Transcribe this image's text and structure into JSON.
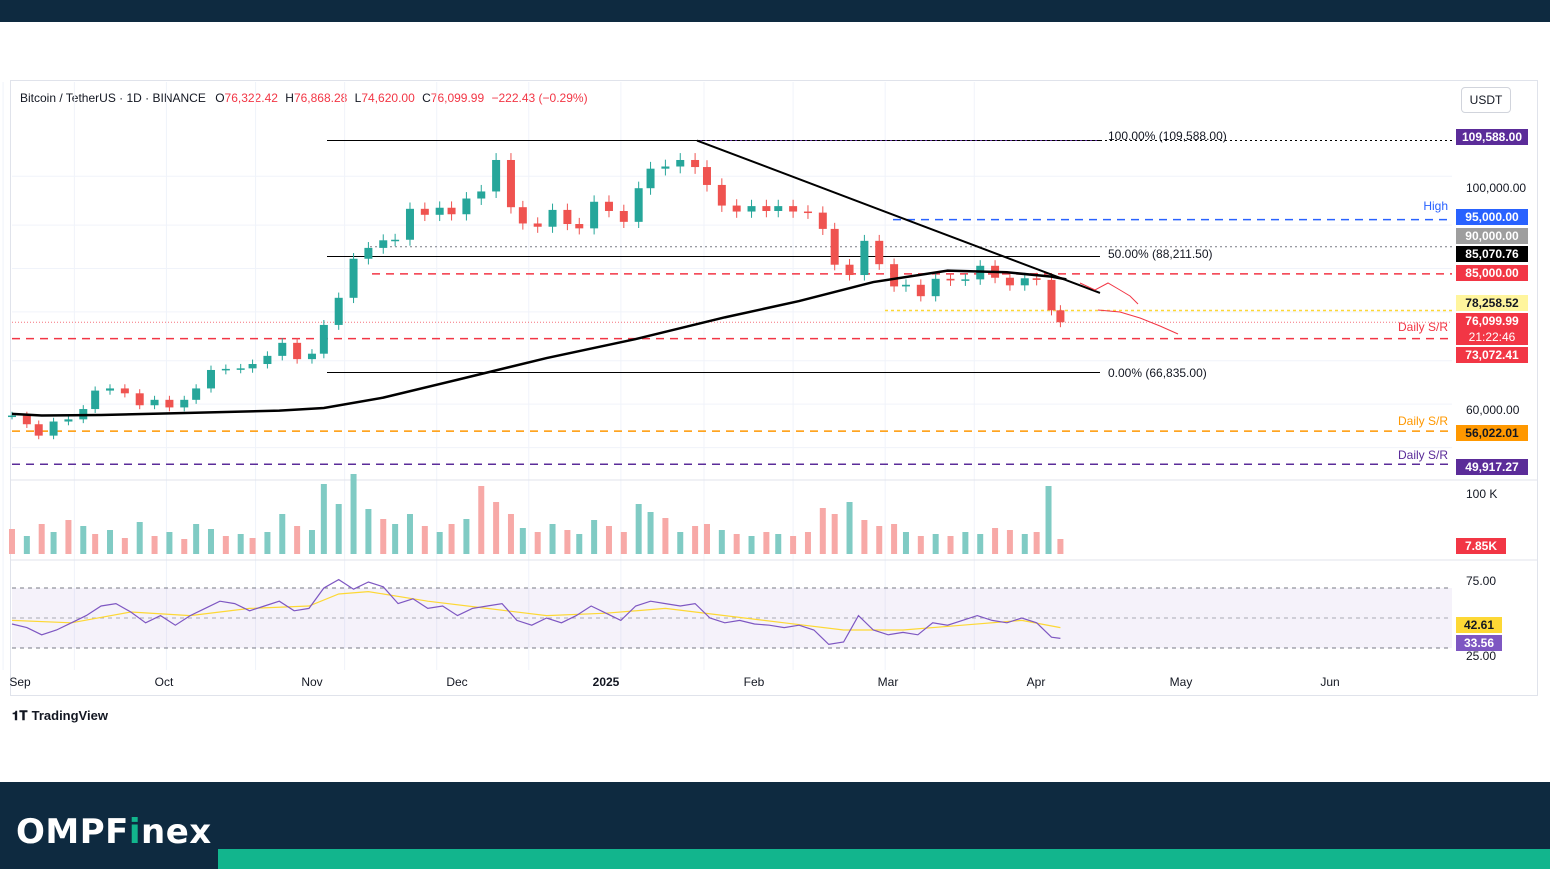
{
  "header": {
    "symbol": "Bitcoin / TetherUS · 1D · BINANCE",
    "open_label": "O",
    "open": "76,322.42",
    "high_label": "H",
    "high": "76,868.28",
    "low_label": "L",
    "low": "74,620.00",
    "close_label": "C",
    "close": "76,099.99",
    "change": "−222.43 (−0.29%)",
    "currency": "USDT"
  },
  "brand": {
    "name_prefix": "OMPF",
    "name_i": "i",
    "name_suffix": "nex",
    "platform": "TradingView"
  },
  "colors": {
    "up": "#26a69a",
    "down": "#ef5350",
    "sma": "#000000",
    "rsi": "#7e57c2",
    "rsi_ma": "#fdd835",
    "red_sr": "#f23645",
    "orange_sr": "#ff9800",
    "purple_sr": "#5b2c99",
    "blue_high": "#2962ff"
  },
  "chart_data": {
    "type": "candlestick",
    "price_axis": {
      "ticks": [
        "100,000.00",
        "60,000.00"
      ],
      "ylim": [
        45000,
        114000
      ]
    },
    "x_axis": {
      "ticks": [
        "Sep",
        "Oct",
        "Nov",
        "Dec",
        "2025",
        "Feb",
        "Mar",
        "Apr",
        "May",
        "Jun"
      ]
    },
    "series_close": [
      [
        0,
        58900
      ],
      [
        5,
        57300
      ],
      [
        9,
        55200
      ],
      [
        14,
        57800
      ],
      [
        19,
        58200
      ],
      [
        24,
        60100
      ],
      [
        28,
        63500
      ],
      [
        33,
        63900
      ],
      [
        38,
        63000
      ],
      [
        43,
        60800
      ],
      [
        48,
        61800
      ],
      [
        53,
        60400
      ],
      [
        58,
        61800
      ],
      [
        62,
        63900
      ],
      [
        67,
        67300
      ],
      [
        72,
        67500
      ],
      [
        77,
        67600
      ],
      [
        81,
        68400
      ],
      [
        86,
        69900
      ],
      [
        91,
        72300
      ],
      [
        96,
        69300
      ],
      [
        101,
        70300
      ],
      [
        105,
        75600
      ],
      [
        110,
        80600
      ],
      [
        115,
        87800
      ],
      [
        120,
        89800
      ],
      [
        125,
        91200
      ],
      [
        129,
        91300
      ],
      [
        134,
        97000
      ],
      [
        139,
        95900
      ],
      [
        144,
        97200
      ],
      [
        148,
        96000
      ],
      [
        153,
        98900
      ],
      [
        158,
        100200
      ],
      [
        163,
        106000
      ],
      [
        168,
        97300
      ],
      [
        172,
        94300
      ],
      [
        177,
        93700
      ],
      [
        182,
        96800
      ],
      [
        187,
        94200
      ],
      [
        191,
        93400
      ],
      [
        196,
        98300
      ],
      [
        201,
        96600
      ],
      [
        206,
        94600
      ],
      [
        211,
        100800
      ],
      [
        215,
        104400
      ],
      [
        220,
        104800
      ],
      [
        225,
        106000
      ],
      [
        230,
        104700
      ],
      [
        234,
        101400
      ],
      [
        239,
        97600
      ],
      [
        244,
        96500
      ],
      [
        249,
        97500
      ],
      [
        254,
        96600
      ],
      [
        258,
        97500
      ],
      [
        263,
        96500
      ],
      [
        268,
        96300
      ],
      [
        273,
        93300
      ],
      [
        277,
        86700
      ],
      [
        282,
        84800
      ],
      [
        287,
        91100
      ],
      [
        292,
        86800
      ],
      [
        297,
        82700
      ],
      [
        301,
        83000
      ],
      [
        306,
        80900
      ],
      [
        311,
        84100
      ],
      [
        316,
        83800
      ],
      [
        321,
        84000
      ],
      [
        326,
        86500
      ],
      [
        331,
        84300
      ],
      [
        336,
        82900
      ],
      [
        341,
        84200
      ],
      [
        345,
        83900
      ],
      [
        350,
        78300
      ],
      [
        353,
        76100
      ]
    ],
    "sma_200": [
      [
        0,
        59200
      ],
      [
        10,
        58900
      ],
      [
        30,
        59000
      ],
      [
        60,
        59400
      ],
      [
        90,
        59800
      ],
      [
        105,
        60300
      ],
      [
        125,
        62200
      ],
      [
        150,
        65500
      ],
      [
        180,
        69500
      ],
      [
        210,
        73000
      ],
      [
        240,
        77000
      ],
      [
        265,
        80000
      ],
      [
        290,
        83500
      ],
      [
        315,
        85600
      ],
      [
        335,
        85300
      ],
      [
        350,
        84500
      ],
      [
        355,
        84000
      ]
    ],
    "annotations": {
      "fib_100": "100.00% (109,588.00)",
      "fib_50": "50.00% (88,211.50)",
      "fib_0": "0.00% (66,835.00)",
      "high_label": "High",
      "daily_sr": "Daily S/R"
    },
    "price_labels": [
      "109,588.00",
      "95,000.00",
      "90,000.00",
      "85,070.76",
      "85,000.00",
      "78,258.52",
      "76,099.99",
      "21:22:46",
      "73,072.41",
      "56,022.01",
      "49,917.27"
    ],
    "volume": {
      "label": "100 K",
      "last": "7.85K",
      "values": [
        [
          0,
          25,
          "d"
        ],
        [
          5,
          18,
          "u"
        ],
        [
          10,
          30,
          "d"
        ],
        [
          14,
          22,
          "u"
        ],
        [
          19,
          34,
          "d"
        ],
        [
          24,
          28,
          "u"
        ],
        [
          28,
          20,
          "d"
        ],
        [
          33,
          24,
          "u"
        ],
        [
          38,
          16,
          "d"
        ],
        [
          43,
          32,
          "u"
        ],
        [
          48,
          18,
          "d"
        ],
        [
          53,
          22,
          "u"
        ],
        [
          58,
          15,
          "d"
        ],
        [
          62,
          30,
          "u"
        ],
        [
          67,
          25,
          "u"
        ],
        [
          72,
          18,
          "d"
        ],
        [
          77,
          20,
          "u"
        ],
        [
          81,
          16,
          "d"
        ],
        [
          86,
          22,
          "u"
        ],
        [
          91,
          40,
          "u"
        ],
        [
          96,
          28,
          "d"
        ],
        [
          101,
          24,
          "u"
        ],
        [
          105,
          70,
          "u"
        ],
        [
          110,
          50,
          "u"
        ],
        [
          115,
          80,
          "u"
        ],
        [
          120,
          45,
          "u"
        ],
        [
          125,
          35,
          "d"
        ],
        [
          129,
          30,
          "u"
        ],
        [
          134,
          40,
          "u"
        ],
        [
          139,
          28,
          "d"
        ],
        [
          144,
          22,
          "u"
        ],
        [
          148,
          30,
          "d"
        ],
        [
          153,
          35,
          "u"
        ],
        [
          158,
          68,
          "d"
        ],
        [
          163,
          52,
          "d"
        ],
        [
          168,
          40,
          "d"
        ],
        [
          172,
          26,
          "u"
        ],
        [
          177,
          22,
          "d"
        ],
        [
          182,
          30,
          "u"
        ],
        [
          187,
          24,
          "d"
        ],
        [
          191,
          20,
          "u"
        ],
        [
          196,
          34,
          "u"
        ],
        [
          201,
          28,
          "d"
        ],
        [
          206,
          22,
          "d"
        ],
        [
          211,
          50,
          "u"
        ],
        [
          215,
          42,
          "u"
        ],
        [
          220,
          36,
          "d"
        ],
        [
          225,
          22,
          "u"
        ],
        [
          230,
          28,
          "d"
        ],
        [
          234,
          30,
          "d"
        ],
        [
          239,
          24,
          "u"
        ],
        [
          244,
          20,
          "d"
        ],
        [
          249,
          18,
          "u"
        ],
        [
          254,
          22,
          "d"
        ],
        [
          258,
          20,
          "u"
        ],
        [
          263,
          18,
          "d"
        ],
        [
          268,
          22,
          "d"
        ],
        [
          273,
          46,
          "d"
        ],
        [
          277,
          40,
          "d"
        ],
        [
          282,
          52,
          "u"
        ],
        [
          287,
          34,
          "d"
        ],
        [
          292,
          28,
          "d"
        ],
        [
          297,
          30,
          "d"
        ],
        [
          301,
          22,
          "u"
        ],
        [
          306,
          18,
          "d"
        ],
        [
          311,
          20,
          "u"
        ],
        [
          316,
          18,
          "d"
        ],
        [
          321,
          22,
          "u"
        ],
        [
          326,
          20,
          "u"
        ],
        [
          331,
          26,
          "d"
        ],
        [
          336,
          24,
          "d"
        ],
        [
          341,
          20,
          "u"
        ],
        [
          345,
          22,
          "d"
        ],
        [
          349,
          68,
          "u"
        ],
        [
          353,
          15,
          "d"
        ]
      ]
    },
    "rsi": {
      "levels": [
        "75.00",
        "25.00"
      ],
      "value": "33.56",
      "ma_value": "42.61",
      "line": [
        [
          0,
          45
        ],
        [
          5,
          42
        ],
        [
          10,
          36
        ],
        [
          15,
          40
        ],
        [
          20,
          46
        ],
        [
          25,
          52
        ],
        [
          30,
          60
        ],
        [
          35,
          62
        ],
        [
          40,
          55
        ],
        [
          45,
          46
        ],
        [
          50,
          52
        ],
        [
          55,
          44
        ],
        [
          60,
          52
        ],
        [
          65,
          58
        ],
        [
          70,
          64
        ],
        [
          75,
          62
        ],
        [
          80,
          56
        ],
        [
          85,
          60
        ],
        [
          90,
          64
        ],
        [
          95,
          56
        ],
        [
          100,
          58
        ],
        [
          105,
          75
        ],
        [
          110,
          82
        ],
        [
          115,
          74
        ],
        [
          120,
          80
        ],
        [
          125,
          76
        ],
        [
          130,
          62
        ],
        [
          135,
          66
        ],
        [
          140,
          58
        ],
        [
          145,
          60
        ],
        [
          150,
          52
        ],
        [
          155,
          58
        ],
        [
          160,
          60
        ],
        [
          165,
          62
        ],
        [
          170,
          48
        ],
        [
          175,
          44
        ],
        [
          180,
          50
        ],
        [
          185,
          46
        ],
        [
          190,
          52
        ],
        [
          195,
          60
        ],
        [
          200,
          54
        ],
        [
          205,
          48
        ],
        [
          210,
          60
        ],
        [
          215,
          64
        ],
        [
          220,
          62
        ],
        [
          225,
          60
        ],
        [
          230,
          62
        ],
        [
          235,
          50
        ],
        [
          240,
          46
        ],
        [
          245,
          48
        ],
        [
          250,
          45
        ],
        [
          255,
          44
        ],
        [
          260,
          42
        ],
        [
          265,
          44
        ],
        [
          270,
          40
        ],
        [
          275,
          28
        ],
        [
          280,
          30
        ],
        [
          285,
          52
        ],
        [
          290,
          40
        ],
        [
          295,
          36
        ],
        [
          300,
          38
        ],
        [
          305,
          36
        ],
        [
          310,
          46
        ],
        [
          315,
          44
        ],
        [
          320,
          48
        ],
        [
          325,
          52
        ],
        [
          330,
          48
        ],
        [
          335,
          46
        ],
        [
          340,
          50
        ],
        [
          345,
          46
        ],
        [
          350,
          34
        ],
        [
          353,
          33
        ]
      ],
      "ma": [
        [
          0,
          48
        ],
        [
          20,
          46
        ],
        [
          40,
          55
        ],
        [
          60,
          52
        ],
        [
          80,
          58
        ],
        [
          100,
          60
        ],
        [
          110,
          70
        ],
        [
          120,
          72
        ],
        [
          140,
          64
        ],
        [
          160,
          58
        ],
        [
          180,
          52
        ],
        [
          200,
          54
        ],
        [
          220,
          58
        ],
        [
          240,
          52
        ],
        [
          260,
          46
        ],
        [
          280,
          40
        ],
        [
          300,
          40
        ],
        [
          320,
          44
        ],
        [
          340,
          48
        ],
        [
          353,
          42
        ]
      ]
    }
  }
}
